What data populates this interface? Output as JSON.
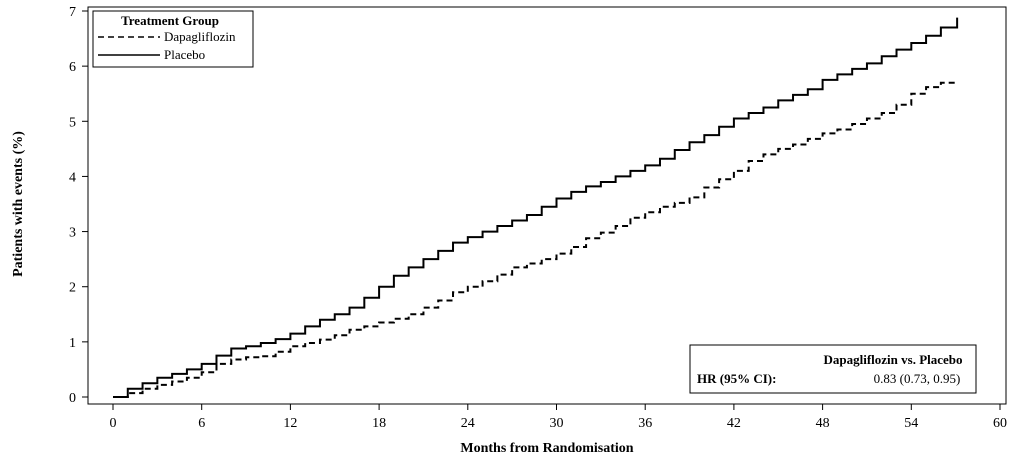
{
  "chart_data": {
    "type": "line",
    "title": "",
    "xlabel": "Months from Randomisation",
    "ylabel": "Patients with events (%)",
    "xlim": [
      0,
      60
    ],
    "ylim": [
      0,
      7
    ],
    "xticks": [
      0,
      6,
      12,
      18,
      24,
      30,
      36,
      42,
      48,
      54,
      60
    ],
    "yticks": [
      0,
      1,
      2,
      3,
      4,
      5,
      6,
      7
    ],
    "grid": false,
    "legend": {
      "title": "Treatment Group",
      "placement": "top-left"
    },
    "series": [
      {
        "name": "Dapagliflozin",
        "line_style": "dashed",
        "color": "#000000",
        "x": [
          0,
          1,
          2,
          3,
          4,
          5,
          6,
          7,
          8,
          9,
          10,
          11,
          12,
          13,
          14,
          15,
          16,
          17,
          18,
          19,
          20,
          21,
          22,
          23,
          24,
          25,
          26,
          27,
          28,
          29,
          30,
          31,
          32,
          33,
          34,
          35,
          36,
          37,
          38,
          39,
          40,
          41,
          42,
          43,
          44,
          45,
          46,
          47,
          48,
          49,
          50,
          51,
          52,
          53,
          54,
          55,
          56,
          57
        ],
        "y": [
          0,
          0.07,
          0.15,
          0.22,
          0.28,
          0.35,
          0.45,
          0.6,
          0.68,
          0.72,
          0.74,
          0.82,
          0.92,
          0.98,
          1.04,
          1.12,
          1.22,
          1.28,
          1.35,
          1.42,
          1.5,
          1.62,
          1.75,
          1.9,
          2.0,
          2.1,
          2.22,
          2.35,
          2.42,
          2.5,
          2.6,
          2.72,
          2.88,
          2.98,
          3.1,
          3.25,
          3.35,
          3.45,
          3.52,
          3.62,
          3.8,
          3.95,
          4.1,
          4.28,
          4.4,
          4.5,
          4.58,
          4.68,
          4.78,
          4.85,
          4.95,
          5.05,
          5.15,
          5.3,
          5.5,
          5.62,
          5.7,
          5.72
        ]
      },
      {
        "name": "Placebo",
        "line_style": "solid",
        "color": "#000000",
        "x": [
          0,
          1,
          2,
          3,
          4,
          5,
          6,
          7,
          8,
          9,
          10,
          11,
          12,
          13,
          14,
          15,
          16,
          17,
          18,
          19,
          20,
          21,
          22,
          23,
          24,
          25,
          26,
          27,
          28,
          29,
          30,
          31,
          32,
          33,
          34,
          35,
          36,
          37,
          38,
          39,
          40,
          41,
          42,
          43,
          44,
          45,
          46,
          47,
          48,
          49,
          50,
          51,
          52,
          53,
          54,
          55,
          56,
          57,
          57.1
        ],
        "y": [
          0,
          0.15,
          0.25,
          0.35,
          0.42,
          0.5,
          0.6,
          0.75,
          0.88,
          0.92,
          0.98,
          1.05,
          1.15,
          1.28,
          1.4,
          1.5,
          1.62,
          1.8,
          2.0,
          2.2,
          2.35,
          2.5,
          2.65,
          2.8,
          2.9,
          3.0,
          3.1,
          3.2,
          3.3,
          3.45,
          3.6,
          3.72,
          3.82,
          3.9,
          4.0,
          4.1,
          4.2,
          4.32,
          4.48,
          4.62,
          4.75,
          4.9,
          5.05,
          5.15,
          5.25,
          5.38,
          5.48,
          5.58,
          5.75,
          5.85,
          5.95,
          6.05,
          6.18,
          6.3,
          6.42,
          6.55,
          6.7,
          6.7,
          6.88
        ]
      }
    ],
    "annotation": {
      "header": "Dapagliflozin vs. Placebo",
      "label": "HR (95% CI):",
      "value": "0.83 (0.73, 0.95)",
      "placement": "bottom-right"
    }
  }
}
